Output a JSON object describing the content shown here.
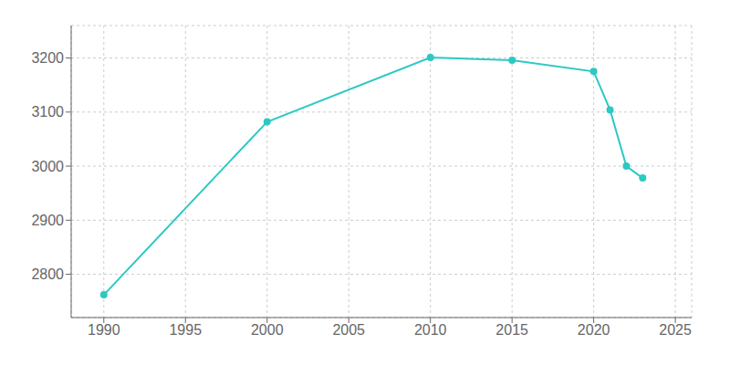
{
  "chart_data": {
    "type": "line",
    "x": [
      1990,
      2000,
      2010,
      2015,
      2020,
      2021,
      2022,
      2023
    ],
    "values": [
      2762,
      3082,
      3201,
      3196,
      3175,
      3104,
      3000,
      2978
    ],
    "color": "#2ec8c4",
    "marker": "circle",
    "xlim": [
      1988,
      2026
    ],
    "ylim": [
      2720,
      3260
    ],
    "xticks": [
      1990,
      1995,
      2000,
      2005,
      2010,
      2015,
      2020,
      2025
    ],
    "yticks": [
      2800,
      2900,
      3000,
      3100,
      3200
    ],
    "grid": true
  }
}
